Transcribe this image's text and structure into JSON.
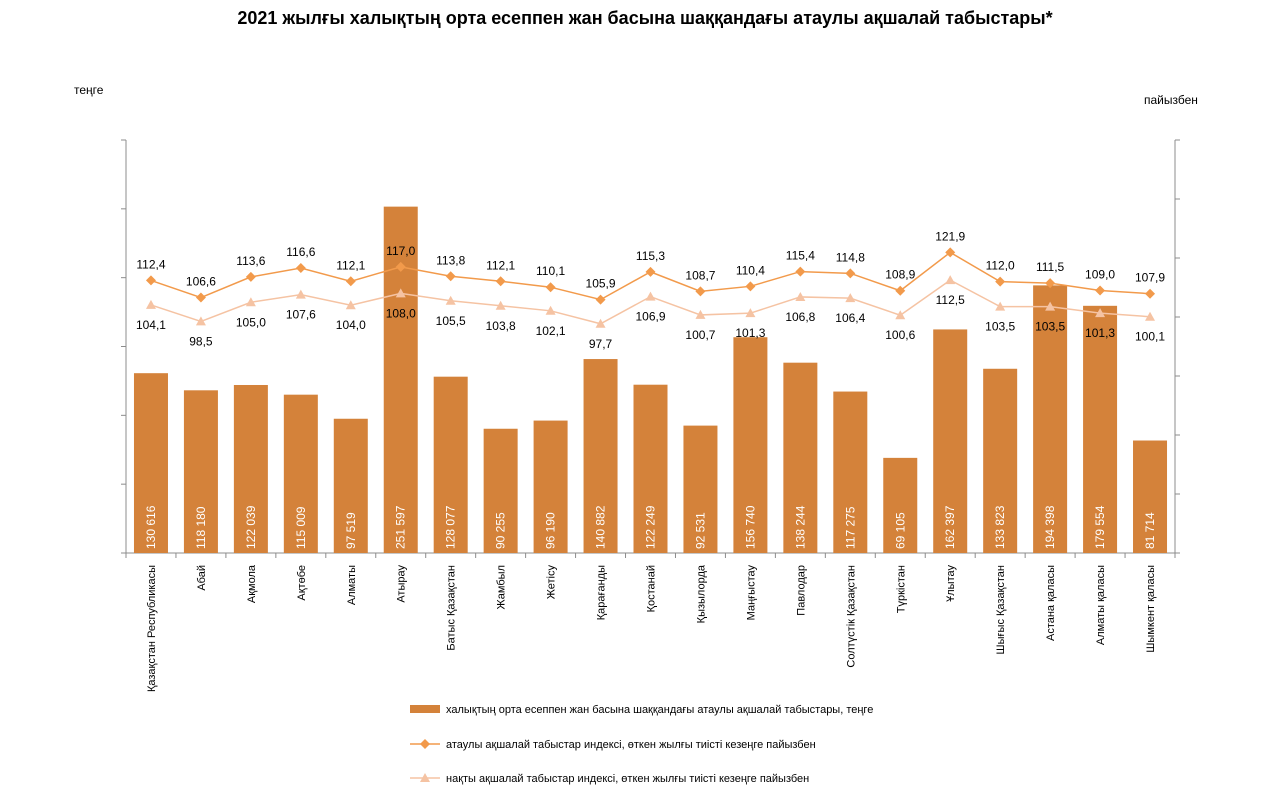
{
  "chart_data": {
    "type": "bar",
    "title": "2021 жылғы халықтың орта есеппен жан басына шаққандағы атаулы ақшалай табыстары*",
    "ylabel_left": "теңге",
    "ylabel_right": "пайызбен",
    "categories": [
      "Қазақстан Республикасы",
      "Абай",
      "Ақмола",
      "Ақтөбе",
      "Алматы",
      "Атырау",
      "Батыс Қазақстан",
      "Жамбыл",
      "Жетісу",
      "Қарағанды",
      "Қостанай",
      "Қызылорда",
      "Маңғыстау",
      "Павлодар",
      "Солтүстік Қазақстан",
      "Түркістан",
      "Ұлытау",
      "Шығыс Қазақстан",
      "Астана қаласы",
      "Алматы қаласы",
      "Шымкент қаласы"
    ],
    "left_axis": {
      "min": 0,
      "max": 300000,
      "step": 50000
    },
    "right_axis": {
      "min": 20,
      "max": 160,
      "step": 20
    },
    "series": [
      {
        "name": "халықтың орта есеппен жан басына шаққандағы атаулы ақшалай табыстары, теңге",
        "kind": "bar",
        "axis": "left",
        "color": "#D4823A",
        "values": [
          130616,
          118180,
          122039,
          115009,
          97519,
          251597,
          128077,
          90255,
          96190,
          140882,
          122249,
          92531,
          156740,
          138244,
          117275,
          69105,
          162397,
          133823,
          194398,
          179554,
          81714
        ],
        "labels": [
          "130 616",
          "118 180",
          "122 039",
          "115 009",
          "97 519",
          "251 597",
          "128 077",
          "90 255",
          "96 190",
          "140 882",
          "122 249",
          "92 531",
          "156 740",
          "138 244",
          "117 275",
          "69 105",
          "162 397",
          "133 823",
          "194 398",
          "179 554",
          "81 714"
        ]
      },
      {
        "name": "атаулы ақшалай табыстар индексі, өткен жылғы тиісті кезеңге пайызбен",
        "kind": "line",
        "marker": "diamond",
        "axis": "right",
        "color": "#F29A4B",
        "values": [
          112.4,
          106.6,
          113.6,
          116.6,
          112.1,
          117.0,
          113.8,
          112.1,
          110.1,
          105.9,
          115.3,
          108.7,
          110.4,
          115.4,
          114.8,
          108.9,
          121.9,
          112.0,
          111.5,
          109.0,
          107.9
        ],
        "labels": [
          "112,4",
          "106,6",
          "113,6",
          "116,6",
          "112,1",
          "117,0",
          "113,8",
          "112,1",
          "110,1",
          "105,9",
          "115,3",
          "108,7",
          "110,4",
          "115,4",
          "114,8",
          "108,9",
          "121,9",
          "112,0",
          "111,5",
          "109,0",
          "107,9"
        ]
      },
      {
        "name": "нақты ақшалай табыстар индексі, өткен жылғы тиісті кезеңге пайызбен",
        "kind": "line",
        "marker": "triangle",
        "axis": "right",
        "color": "#F5C3A3",
        "values": [
          104.1,
          98.5,
          105.0,
          107.6,
          104.0,
          108.0,
          105.5,
          103.8,
          102.1,
          97.7,
          106.9,
          100.7,
          101.3,
          106.8,
          106.4,
          100.6,
          112.5,
          103.5,
          103.5,
          101.3,
          100.1
        ],
        "labels": [
          "104,1",
          "98,5",
          "105,0",
          "107,6",
          "104,0",
          "108,0",
          "105,5",
          "103,8",
          "102,1",
          "97,7",
          "106,9",
          "100,7",
          "101,3",
          "106,8",
          "106,4",
          "100,6",
          "112,5",
          "103,5",
          "103,5",
          "101,3",
          "100,1"
        ]
      }
    ],
    "legend_position": "bottom"
  }
}
